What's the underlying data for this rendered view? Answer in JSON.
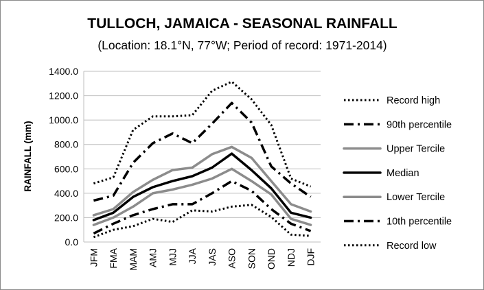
{
  "chart_data": {
    "type": "line",
    "title": "TULLOCH, JAMAICA - SEASONAL RAINFALL",
    "subtitle": "(Location: 18.1°N, 77°W; Period of record: 1971-2014)",
    "ylabel": "RAINFALL (mm)",
    "xlabel": "",
    "ylim": [
      0,
      1400
    ],
    "yticks": [
      "0.0",
      "200.0",
      "400.0",
      "600.0",
      "800.0",
      "1000.0",
      "1200.0",
      "1400.0"
    ],
    "ytick_values": [
      0,
      200,
      400,
      600,
      800,
      1000,
      1200,
      1400
    ],
    "grid": true,
    "legend_position": "right",
    "categories": [
      "JFM",
      "FMA",
      "MAM",
      "AMJ",
      "MJJ",
      "JJA",
      "JAS",
      "ASO",
      "SON",
      "OND",
      "NDJ",
      "DJF"
    ],
    "series": [
      {
        "name": "Record high",
        "style": "dotted",
        "color": "#000000",
        "values": [
          480,
          530,
          920,
          1030,
          1030,
          1040,
          1240,
          1315,
          1170,
          960,
          520,
          455
        ]
      },
      {
        "name": "90th percentile",
        "style": "dashdot",
        "color": "#000000",
        "values": [
          340,
          380,
          650,
          810,
          890,
          810,
          970,
          1140,
          980,
          620,
          480,
          370
        ]
      },
      {
        "name": "Upper Tercile",
        "style": "solid",
        "color": "#8c8c8c",
        "values": [
          220,
          270,
          410,
          510,
          590,
          610,
          720,
          780,
          690,
          500,
          310,
          250
        ]
      },
      {
        "name": "Median",
        "style": "solid",
        "color": "#000000",
        "values": [
          180,
          240,
          370,
          450,
          500,
          540,
          610,
          725,
          590,
          440,
          240,
          200
        ]
      },
      {
        "name": "Lower Tercile",
        "style": "solid",
        "color": "#8c8c8c",
        "values": [
          140,
          200,
          290,
          400,
          430,
          470,
          520,
          600,
          500,
          390,
          190,
          140
        ]
      },
      {
        "name": "10th percentile",
        "style": "dashdot",
        "color": "#000000",
        "values": [
          70,
          150,
          220,
          270,
          310,
          310,
          400,
          500,
          420,
          270,
          150,
          90
        ]
      },
      {
        "name": "Record low",
        "style": "dotted",
        "color": "#000000",
        "values": [
          40,
          100,
          130,
          190,
          165,
          260,
          250,
          290,
          305,
          205,
          60,
          50
        ]
      }
    ]
  }
}
